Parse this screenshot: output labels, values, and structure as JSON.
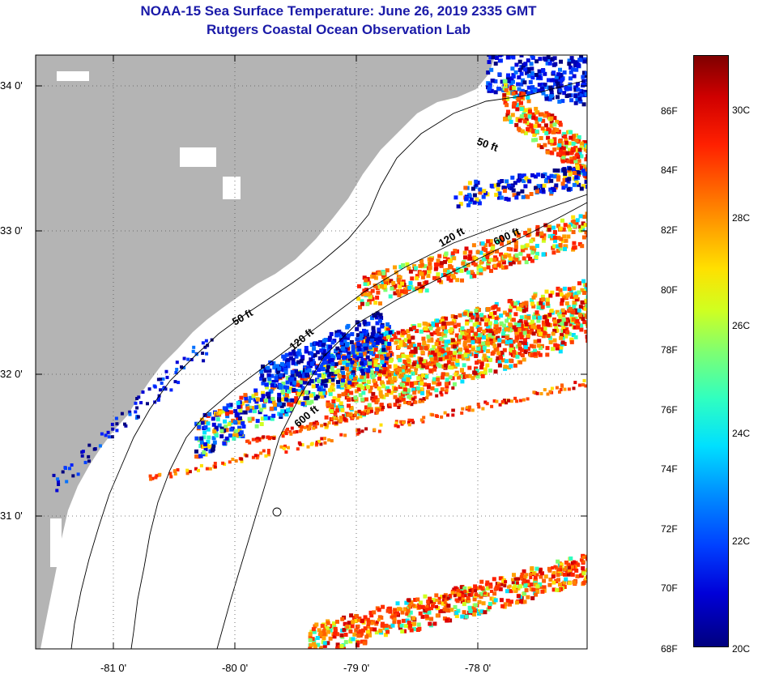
{
  "title": {
    "line1": "NOAA-15 Sea Surface Temperature:  June 26, 2019 2335 GMT",
    "line2": "Rutgers Coastal Ocean Observation Lab"
  },
  "map": {
    "lat_labels": [
      "34 0'",
      "33 0'",
      "32 0'",
      "31 0'"
    ],
    "lon_labels": [
      "-81 0'",
      "-80 0'",
      "-79 0'",
      "-78 0'"
    ],
    "contour_labels": [
      "50 ft",
      "50 ft",
      "120 ft",
      "120 ft",
      "600 ft",
      "600 ft"
    ],
    "land_color": "#b4b4b4",
    "no_data_color": "#ffffff"
  },
  "colorbar": {
    "fahrenheit_labels": [
      "86F",
      "84F",
      "82F",
      "80F",
      "78F",
      "76F",
      "74F",
      "72F",
      "70F",
      "68F"
    ],
    "celsius_labels": [
      "30C",
      "28C",
      "26C",
      "24C",
      "22C",
      "20C"
    ],
    "min_color": "#00007f",
    "max_color": "#7f0000"
  }
}
